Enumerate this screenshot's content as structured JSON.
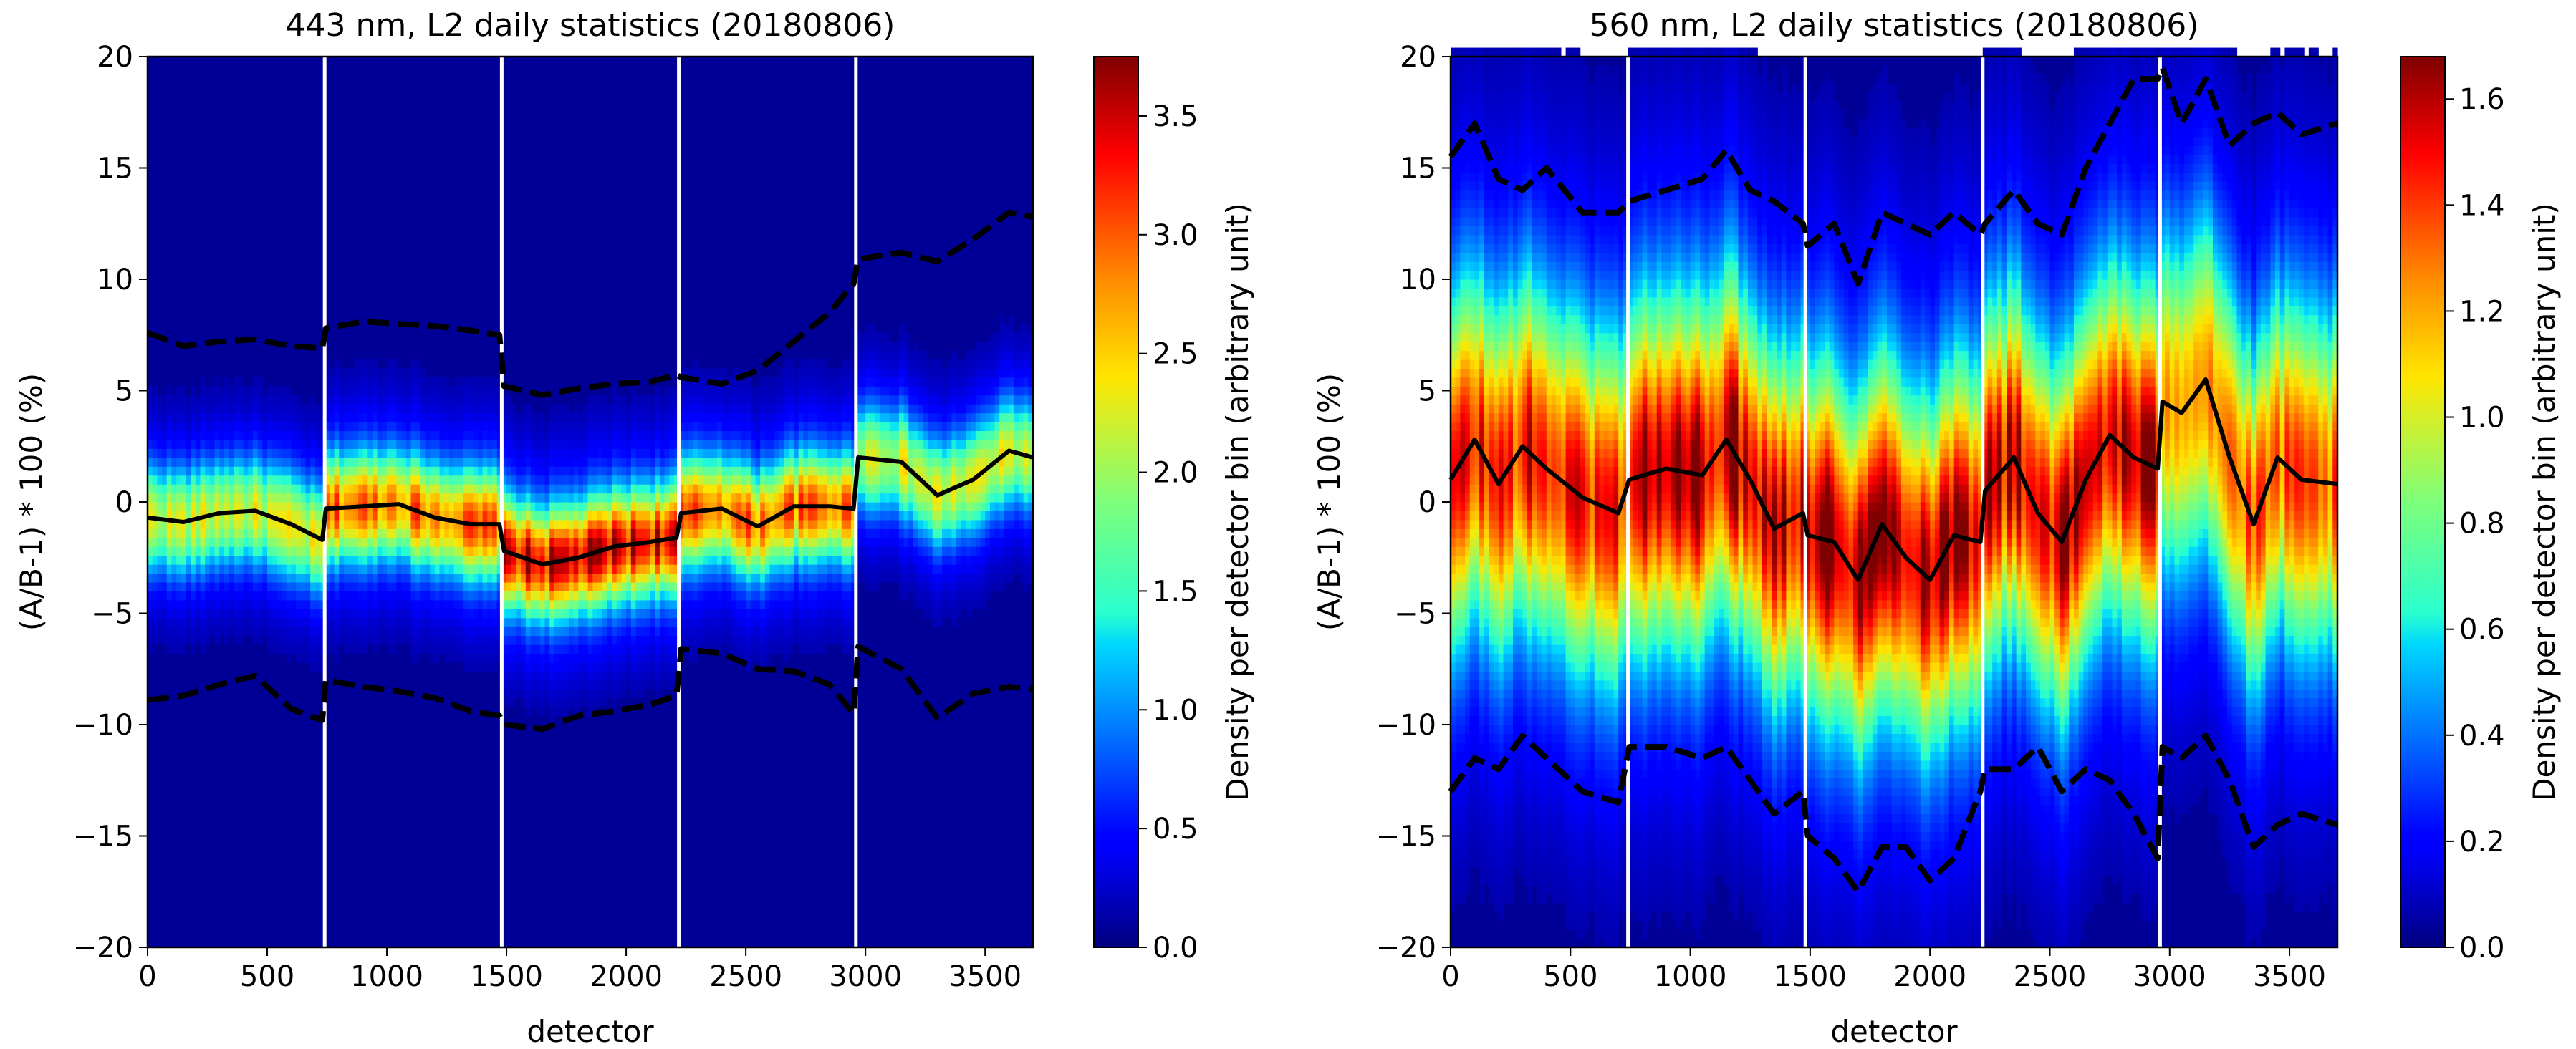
{
  "chart_data": [
    {
      "type": "heatmap",
      "title": "443 nm, L2 daily statistics (20180806)",
      "xlabel": "detector",
      "ylabel": "(A/B-1) * 100 (%)",
      "xlim": [
        0,
        3700
      ],
      "ylim": [
        -20,
        20
      ],
      "xticks": [
        0,
        500,
        1000,
        1500,
        2000,
        2500,
        3000,
        3500
      ],
      "xtick_labels": [
        "0",
        "500",
        "1000",
        "1500",
        "2000",
        "2500",
        "3000",
        "3500"
      ],
      "yticks": [
        -20,
        -15,
        -10,
        -5,
        0,
        5,
        10,
        15,
        20
      ],
      "ytick_labels": [
        "−20",
        "−15",
        "−10",
        "−5",
        "0",
        "5",
        "10",
        "15",
        "20"
      ],
      "colorbar": {
        "label": "Density per detector bin (arbitrary unit)",
        "range": [
          0,
          3.75
        ],
        "ticks": [
          0.0,
          0.5,
          1.0,
          1.5,
          2.0,
          2.5,
          3.0,
          3.5
        ],
        "tick_labels": [
          "0.0",
          "0.5",
          "1.0",
          "1.5",
          "2.0",
          "2.5",
          "3.0",
          "3.5"
        ]
      },
      "segment_boundaries": [
        740,
        1480,
        2220,
        2960
      ],
      "density_params": {
        "sigma_core": 1.6,
        "sigma_wing": 3.8,
        "peak_scale": [
          2.2,
          2.9,
          3.4,
          2.9,
          2.2
        ]
      },
      "x": [
        0,
        150,
        300,
        450,
        600,
        730,
        745,
        900,
        1050,
        1200,
        1350,
        1470,
        1490,
        1650,
        1800,
        1950,
        2100,
        2210,
        2230,
        2400,
        2550,
        2700,
        2850,
        2950,
        2970,
        3150,
        3300,
        3450,
        3600,
        3700
      ],
      "series": [
        {
          "name": "median",
          "style": "solid",
          "values": [
            -0.7,
            -0.9,
            -0.5,
            -0.4,
            -1.0,
            -1.7,
            -0.3,
            -0.2,
            -0.1,
            -0.7,
            -1.0,
            -1.0,
            -2.2,
            -2.8,
            -2.5,
            -2.0,
            -1.8,
            -1.6,
            -0.5,
            -0.3,
            -1.1,
            -0.2,
            -0.2,
            -0.3,
            2.0,
            1.8,
            0.3,
            1.0,
            2.3,
            2.0
          ]
        },
        {
          "name": "upper",
          "style": "dashed",
          "values": [
            7.6,
            7.0,
            7.2,
            7.3,
            7.0,
            6.9,
            7.8,
            8.1,
            8.0,
            7.9,
            7.7,
            7.5,
            5.2,
            4.8,
            5.1,
            5.3,
            5.4,
            5.7,
            5.6,
            5.3,
            5.9,
            7.2,
            8.5,
            9.8,
            10.9,
            11.2,
            10.8,
            11.8,
            13.0,
            12.8
          ]
        },
        {
          "name": "lower",
          "style": "dashed",
          "values": [
            -8.9,
            -8.7,
            -8.2,
            -7.8,
            -9.3,
            -9.8,
            -8.0,
            -8.3,
            -8.5,
            -8.8,
            -9.4,
            -9.6,
            -10.0,
            -10.2,
            -9.6,
            -9.4,
            -9.1,
            -8.7,
            -6.6,
            -6.8,
            -7.5,
            -7.6,
            -8.2,
            -9.5,
            -6.5,
            -7.5,
            -9.7,
            -8.6,
            -8.3,
            -8.4
          ]
        }
      ]
    },
    {
      "type": "heatmap",
      "title": "560 nm, L2 daily statistics (20180806)",
      "xlabel": "detector",
      "ylabel": "(A/B-1) * 100 (%)",
      "xlim": [
        0,
        3700
      ],
      "ylim": [
        -20,
        20
      ],
      "xticks": [
        0,
        500,
        1000,
        1500,
        2000,
        2500,
        3000,
        3500
      ],
      "xtick_labels": [
        "0",
        "500",
        "1000",
        "1500",
        "2000",
        "2500",
        "3000",
        "3500"
      ],
      "yticks": [
        -20,
        -15,
        -10,
        -5,
        0,
        5,
        10,
        15,
        20
      ],
      "ytick_labels": [
        "−20",
        "−15",
        "−10",
        "−5",
        "0",
        "5",
        "10",
        "15",
        "20"
      ],
      "colorbar": {
        "label": "Density per detector bin (arbitrary unit)",
        "range": [
          0,
          1.68
        ],
        "ticks": [
          0.0,
          0.2,
          0.4,
          0.6,
          0.8,
          1.0,
          1.2,
          1.4,
          1.6
        ],
        "tick_labels": [
          "0.0",
          "0.2",
          "0.4",
          "0.6",
          "0.8",
          "1.0",
          "1.2",
          "1.4",
          "1.6"
        ]
      },
      "segment_boundaries": [
        740,
        1480,
        2220,
        2960
      ],
      "density_params": {
        "sigma_core": 5.0,
        "sigma_wing": 11.0,
        "peak_scale": [
          1.45,
          1.6,
          1.65,
          1.55,
          1.3
        ]
      },
      "x": [
        0,
        100,
        200,
        300,
        400,
        550,
        700,
        745,
        900,
        1050,
        1150,
        1250,
        1350,
        1470,
        1490,
        1600,
        1700,
        1800,
        1900,
        2000,
        2100,
        2210,
        2230,
        2350,
        2450,
        2550,
        2650,
        2750,
        2850,
        2950,
        2970,
        3050,
        3150,
        3250,
        3350,
        3450,
        3550,
        3700
      ],
      "series": [
        {
          "name": "median",
          "style": "solid",
          "values": [
            1.0,
            2.8,
            0.8,
            2.5,
            1.5,
            0.2,
            -0.5,
            1.0,
            1.5,
            1.2,
            2.8,
            1.0,
            -1.2,
            -0.5,
            -1.5,
            -1.8,
            -3.5,
            -1.0,
            -2.5,
            -3.5,
            -1.5,
            -1.8,
            0.5,
            2.0,
            -0.5,
            -1.8,
            1.0,
            3.0,
            2.0,
            1.5,
            4.5,
            4.0,
            5.5,
            2.0,
            -1.0,
            2.0,
            1.0,
            0.8
          ]
        },
        {
          "name": "upper",
          "style": "dashed",
          "values": [
            15.5,
            17.0,
            14.5,
            14.0,
            15.0,
            13.0,
            13.0,
            13.5,
            14.0,
            14.5,
            15.8,
            14.0,
            13.5,
            12.5,
            11.5,
            12.5,
            9.8,
            13.0,
            12.5,
            12.0,
            13.0,
            12.0,
            12.5,
            14.0,
            12.5,
            12.0,
            15.0,
            17.0,
            19.0,
            19.0,
            19.5,
            17.0,
            19.0,
            16.0,
            17.0,
            17.5,
            16.5,
            17.0
          ]
        },
        {
          "name": "lower",
          "style": "dashed",
          "values": [
            -13.0,
            -11.5,
            -12.0,
            -10.5,
            -11.5,
            -13.0,
            -13.5,
            -11.0,
            -11.0,
            -11.5,
            -11.0,
            -12.5,
            -14.0,
            -13.0,
            -15.0,
            -16.0,
            -17.5,
            -15.5,
            -15.5,
            -17.0,
            -16.0,
            -13.0,
            -12.0,
            -12.0,
            -11.0,
            -13.0,
            -12.0,
            -12.5,
            -14.0,
            -16.0,
            -11.0,
            -11.5,
            -10.5,
            -12.5,
            -15.5,
            -14.5,
            -14.0,
            -14.5
          ]
        }
      ]
    }
  ]
}
